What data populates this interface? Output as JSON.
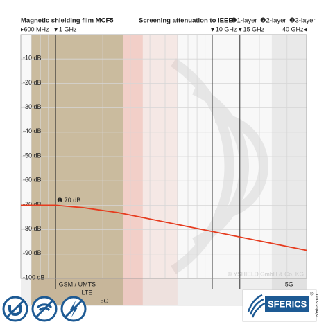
{
  "chart_data": {
    "type": "line",
    "title": "Magnetic shielding film MCF5",
    "subtitle": "Screening attenuation to IEEE",
    "legend": [
      "❶1-layer",
      "❷2-layer",
      "❸3-layer"
    ],
    "x_scale": "log",
    "xlim": [
      0.6,
      40
    ],
    "xticks": [
      {
        "value": 0.6,
        "label": "▸600 MHz"
      },
      {
        "value": 1,
        "label": "▼1 GHz"
      },
      {
        "value": 10,
        "label": "▼10 GHz"
      },
      {
        "value": 15,
        "label": "▼15 GHz"
      },
      {
        "value": 40,
        "label": "40 GHz◂"
      }
    ],
    "xgrid": [
      0.7,
      0.8,
      0.9,
      1,
      2,
      3,
      4,
      5,
      6,
      7,
      8,
      9,
      10,
      20,
      30
    ],
    "ylim": [
      -100,
      0
    ],
    "yticks": [
      {
        "value": -10,
        "label": "-10 dB"
      },
      {
        "value": -20,
        "label": "-20 dB"
      },
      {
        "value": -30,
        "label": "-30 dB"
      },
      {
        "value": -40,
        "label": "-40 dB"
      },
      {
        "value": -50,
        "label": "-50 dB"
      },
      {
        "value": -60,
        "label": "-60 dB"
      },
      {
        "value": -70,
        "label": "-70 dB"
      },
      {
        "value": -80,
        "label": "-80 dB"
      },
      {
        "value": -90,
        "label": "-90 dB"
      },
      {
        "value": -100,
        "label": "-100 dB"
      }
    ],
    "grid": true,
    "series": [
      {
        "color": "#e63b1e",
        "x": [
          0.6,
          1,
          1.5,
          2.5,
          40
        ],
        "values": [
          -70,
          -70,
          -71,
          -73,
          -88.5
        ]
      }
    ],
    "annotations": [
      {
        "text": "❶ 70 dB",
        "x": 1,
        "y": -70
      }
    ],
    "bands": [
      {
        "label": "LTE",
        "range": [
          0.7,
          3.6
        ],
        "color": "rgba(232,120,100,0.22)"
      },
      {
        "label": "GSM / UMTS",
        "range": [
          0.7,
          2.7
        ],
        "color": "rgba(110,150,70,0.33)"
      },
      {
        "label": "5G",
        "range": [
          0.7,
          6
        ],
        "color": "rgba(232,120,100,0.12)"
      },
      {
        "label": "5G",
        "range": [
          24,
          40
        ],
        "color": "rgba(150,150,150,0.15)"
      }
    ],
    "copyright": "© YSHIELD GmbH & Co. KG",
    "brand": "SFERICS",
    "brand_mark": "®",
    "brand_url": "sferics.shop"
  }
}
